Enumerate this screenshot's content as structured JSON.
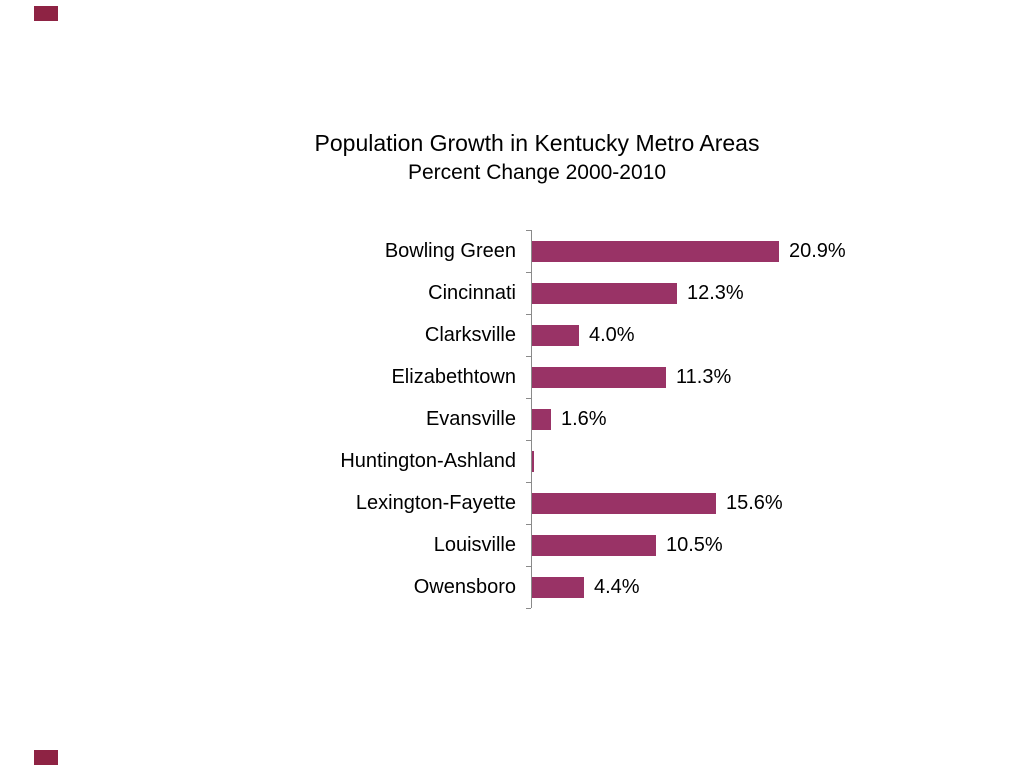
{
  "page": {
    "background_color": "#ffffff",
    "decor_color": "#8e2344"
  },
  "chart_data": {
    "type": "bar",
    "orientation": "horizontal",
    "title": "Population Growth in Kentucky Metro Areas",
    "subtitle": "Percent Change 2000-2010",
    "categories": [
      "Bowling Green",
      "Cincinnati",
      "Clarksville",
      "Elizabethtown",
      "Evansville",
      "Huntington-Ashland",
      "Lexington-Fayette",
      "Louisville",
      "Owensboro"
    ],
    "values": [
      20.9,
      12.3,
      4.0,
      11.3,
      1.6,
      0.1,
      15.6,
      10.5,
      4.4
    ],
    "value_labels": [
      "20.9%",
      "12.3%",
      "4.0%",
      "11.3%",
      "1.6%",
      "",
      "15.6%",
      "10.5%",
      "4.4%"
    ],
    "xlabel": "",
    "ylabel": "",
    "xlim": [
      0,
      22
    ],
    "grid": false,
    "legend": false,
    "bar_color": "#993366",
    "axis_color": "#8a8a8a"
  }
}
